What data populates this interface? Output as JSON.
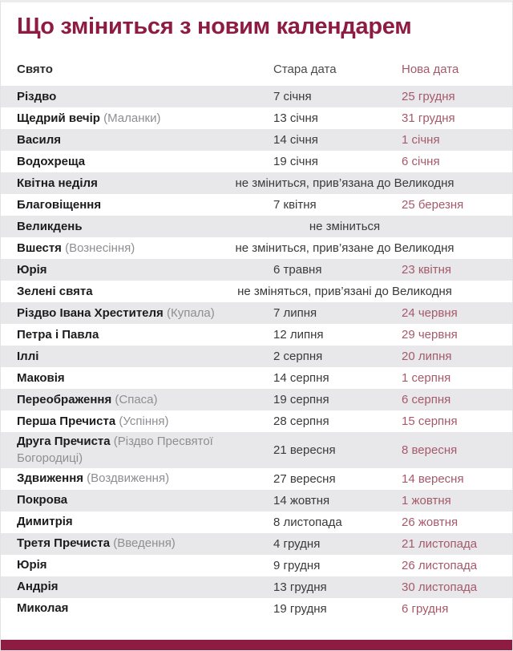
{
  "title": "Що зміниться з новим календарем",
  "colors": {
    "accent": "#8e1c42",
    "new_date": "#a55a6b",
    "row_alt": "#e8e8ea"
  },
  "table": {
    "headers": {
      "holiday": "Свято",
      "old_date": "Стара дата",
      "new_date": "Нова дата"
    },
    "rows": [
      {
        "name": "Різдво",
        "old": "7 січня",
        "new": "25 грудня"
      },
      {
        "name": "Щедрий вечір",
        "note": "(Маланки)",
        "old": "13 січня",
        "new": "31 грудня"
      },
      {
        "name": "Василя",
        "old": "14 січня",
        "new": "1 січня"
      },
      {
        "name": "Водохреща",
        "old": "19 січня",
        "new": "6 січня"
      },
      {
        "name": "Квітна неділя",
        "span": "не зміниться, прив’язана до Великодня"
      },
      {
        "name": "Благовіщення",
        "old": "7 квітня",
        "new": "25 березня"
      },
      {
        "name": "Великдень",
        "span": "не зміниться"
      },
      {
        "name": "Вшестя",
        "note": "(Вознесіння)",
        "span": "не зміниться, прив’язане до Великодня"
      },
      {
        "name": "Юрія",
        "old": "6 травня",
        "new": "23 квітня"
      },
      {
        "name": "Зелені свята",
        "span": "не зміняться, прив’язані до Великодня"
      },
      {
        "name": "Різдво Івана Хрестителя",
        "note": "(Купала)",
        "old": "7 липня",
        "new": "24 червня"
      },
      {
        "name": "Петра і Павла",
        "old": "12 липня",
        "new": "29 червня"
      },
      {
        "name": "Іллі",
        "old": "2 серпня",
        "new": "20 липня"
      },
      {
        "name": "Маковія",
        "old": "14 серпня",
        "new": "1 серпня"
      },
      {
        "name": "Переображення",
        "note": "(Спаса)",
        "old": "19 серпня",
        "new": "6 серпня"
      },
      {
        "name": "Перша Пречиста",
        "note": "(Успіння)",
        "old": "28 серпня",
        "new": "15 серпня"
      },
      {
        "name": "Друга Пречиста",
        "note": "(Різдво Пресвятої Богородиці)",
        "old": "21 вересня",
        "new": "8 вересня"
      },
      {
        "name": "Здвиження",
        "note": "(Воздвиження)",
        "old": "27 вересня",
        "new": "14 вересня"
      },
      {
        "name": "Покрова",
        "old": "14 жовтня",
        "new": "1 жовтня"
      },
      {
        "name": "Димитрія",
        "old": "8 листопада",
        "new": "26 жовтня"
      },
      {
        "name": "Третя Пречиста",
        "note": "(Введення)",
        "old": "4 грудня",
        "new": "21 листопада"
      },
      {
        "name": "Юрія",
        "old": "9 грудня",
        "new": "26 листопада"
      },
      {
        "name": "Андрія",
        "old": "13 грудня",
        "new": "30 листопада"
      },
      {
        "name": "Миколая",
        "old": "19 грудня",
        "new": "6 грудня"
      }
    ]
  }
}
